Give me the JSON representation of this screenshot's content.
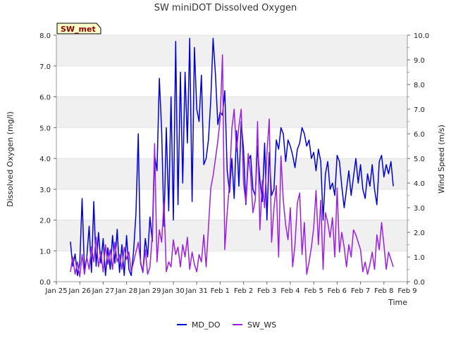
{
  "chart_data": {
    "type": "line",
    "title": "SW miniDOT Dissolved Oxygen",
    "badge": "SW_met",
    "xlabel": "Time",
    "ylabel": "Dissolved Oxygen (mg/l)",
    "y2label": "Wind Speed (m/s)",
    "x_ticks": [
      "Jan 25",
      "Jan 26",
      "Jan 27",
      "Jan 28",
      "Jan 29",
      "Jan 30",
      "Jan 31",
      "Feb 1",
      "Feb 2",
      "Feb 3",
      "Feb 4",
      "Feb 5",
      "Feb 6",
      "Feb 7",
      "Feb 8",
      "Feb 9"
    ],
    "xlim": [
      0,
      15
    ],
    "ylim": [
      0,
      8
    ],
    "y2lim": [
      0,
      10
    ],
    "y_ticks": [
      "0.0",
      "1.0",
      "2.0",
      "3.0",
      "4.0",
      "5.0",
      "6.0",
      "7.0",
      "8.0"
    ],
    "y2_ticks": [
      "0.0",
      "1.0",
      "2.0",
      "3.0",
      "4.0",
      "5.0",
      "6.0",
      "7.0",
      "8.0",
      "9.0",
      "10.0"
    ],
    "grid": "horizontal bands",
    "legend_position": "bottom",
    "series": [
      {
        "name": "MD_DO",
        "axis": "left",
        "color": "#0000dd",
        "x": [
          0.6,
          0.7,
          0.8,
          0.9,
          1.0,
          1.1,
          1.2,
          1.3,
          1.4,
          1.5,
          1.6,
          1.7,
          1.8,
          1.9,
          2.0,
          2.1,
          2.2,
          2.3,
          2.4,
          2.5,
          2.6,
          2.7,
          2.8,
          2.9,
          3.0,
          3.1,
          3.2,
          3.3,
          3.4,
          3.5,
          3.6,
          3.7,
          3.8,
          3.9,
          4.0,
          4.1,
          4.2,
          4.3,
          4.4,
          4.5,
          4.6,
          4.7,
          4.8,
          4.9,
          5.0,
          5.1,
          5.2,
          5.3,
          5.4,
          5.5,
          5.6,
          5.7,
          5.8,
          5.9,
          6.0,
          6.1,
          6.2,
          6.3,
          6.4,
          6.5,
          6.6,
          6.7,
          6.8,
          6.9,
          7.0,
          7.1,
          7.2,
          7.3,
          7.4,
          7.5,
          7.6,
          7.7,
          7.8,
          7.9,
          8.0,
          8.1,
          8.2,
          8.3,
          8.4,
          8.5,
          8.6,
          8.7,
          8.8,
          8.9,
          9.0,
          9.1,
          9.2,
          9.3,
          9.4,
          9.5,
          9.6,
          9.7,
          9.8,
          9.9,
          10.0,
          10.1,
          10.2,
          10.3,
          10.4,
          10.5,
          10.6,
          10.7,
          10.8,
          10.9,
          11.0,
          11.1,
          11.2,
          11.3,
          11.4,
          11.5,
          11.6,
          11.7,
          11.8,
          11.9,
          12.0,
          12.1,
          12.2,
          12.3,
          12.4,
          12.5,
          12.6,
          12.7,
          12.8,
          12.9,
          13.0,
          13.1,
          13.2,
          13.3,
          13.4,
          13.5,
          13.6,
          13.7,
          13.8,
          13.9,
          14.0,
          14.1,
          14.2,
          14.3,
          14.4
        ],
        "values": [
          1.3,
          0.5,
          0.9,
          0.2,
          0.6,
          2.7,
          0.4,
          0.8,
          1.8,
          0.3,
          2.6,
          0.5,
          1.6,
          0.6,
          1.4,
          0.2,
          1.1,
          0.4,
          1.5,
          0.6,
          1.7,
          0.3,
          1.2,
          0.2,
          1.5,
          0.4,
          0.2,
          1.0,
          2.2,
          4.8,
          0.6,
          0.3,
          1.4,
          0.8,
          2.1,
          1.3,
          4.1,
          3.6,
          6.6,
          4.9,
          1.8,
          5.0,
          2.3,
          6.0,
          2.0,
          7.8,
          2.5,
          6.8,
          3.2,
          6.8,
          4.5,
          7.9,
          2.6,
          7.6,
          5.6,
          5.2,
          6.7,
          3.8,
          4.0,
          4.6,
          5.9,
          7.9,
          6.7,
          5.1,
          5.5,
          5.4,
          6.2,
          3.6,
          2.9,
          4.0,
          2.7,
          4.9,
          3.1,
          5.2,
          4.3,
          2.5,
          3.9,
          4.1,
          3.0,
          2.8,
          4.4,
          3.3,
          2.6,
          4.5,
          2.0,
          4.2,
          2.8,
          3.0,
          4.6,
          4.3,
          5.0,
          4.8,
          3.9,
          4.6,
          4.4,
          4.1,
          3.7,
          4.3,
          4.5,
          5.0,
          4.8,
          4.4,
          4.6,
          4.0,
          4.2,
          3.6,
          4.3,
          3.9,
          2.0,
          3.5,
          3.9,
          3.0,
          3.2,
          2.8,
          4.1,
          3.9,
          3.1,
          2.4,
          3.0,
          3.6,
          2.8,
          3.4,
          4.0,
          3.2,
          3.8,
          3.0,
          2.7,
          3.5,
          3.1,
          3.8,
          3.0,
          2.5,
          3.9,
          4.1,
          3.4,
          3.8,
          3.5,
          3.9,
          3.1
        ],
        "overshoot_note_excluded": true
      },
      {
        "name": "SW_WS",
        "axis": "right",
        "color": "#9b1fe0",
        "x": [
          0.6,
          0.7,
          0.8,
          0.9,
          1.0,
          1.1,
          1.2,
          1.3,
          1.4,
          1.5,
          1.6,
          1.7,
          1.8,
          1.9,
          2.0,
          2.1,
          2.2,
          2.3,
          2.4,
          2.5,
          2.6,
          2.7,
          2.8,
          2.9,
          3.0,
          3.1,
          3.2,
          3.3,
          3.4,
          3.5,
          3.6,
          3.7,
          3.8,
          3.9,
          4.0,
          4.1,
          4.2,
          4.3,
          4.4,
          4.5,
          4.6,
          4.7,
          4.8,
          4.9,
          5.0,
          5.1,
          5.2,
          5.3,
          5.4,
          5.5,
          5.6,
          5.7,
          5.8,
          5.9,
          6.0,
          6.1,
          6.2,
          6.3,
          6.4,
          6.5,
          6.6,
          6.7,
          6.8,
          6.9,
          7.0,
          7.1,
          7.2,
          7.3,
          7.4,
          7.5,
          7.6,
          7.7,
          7.8,
          7.9,
          8.0,
          8.1,
          8.2,
          8.3,
          8.4,
          8.5,
          8.6,
          8.7,
          8.8,
          8.9,
          9.0,
          9.1,
          9.2,
          9.3,
          9.4,
          9.5,
          9.6,
          9.7,
          9.8,
          9.9,
          10.0,
          10.1,
          10.2,
          10.3,
          10.4,
          10.5,
          10.6,
          10.7,
          10.8,
          10.9,
          11.0,
          11.1,
          11.2,
          11.3,
          11.4,
          11.5,
          11.6,
          11.7,
          11.8,
          11.9,
          12.0,
          12.1,
          12.2,
          12.3,
          12.4,
          12.5,
          12.6,
          12.7,
          12.8,
          12.9,
          13.0,
          13.1,
          13.2,
          13.3,
          13.4,
          13.5,
          13.6,
          13.7,
          13.8,
          13.9,
          14.0,
          14.1,
          14.2,
          14.3,
          14.4
        ],
        "values": [
          0.4,
          1.0,
          0.3,
          0.8,
          0.2,
          1.1,
          0.3,
          1.0,
          0.5,
          1.4,
          0.8,
          1.8,
          0.6,
          1.2,
          0.4,
          1.5,
          0.7,
          1.3,
          0.5,
          1.6,
          0.8,
          1.1,
          0.5,
          1.4,
          0.9,
          1.2,
          0.4,
          0.8,
          1.2,
          1.6,
          0.8,
          0.4,
          1.3,
          0.3,
          0.6,
          1.9,
          5.6,
          0.8,
          2.1,
          1.6,
          3.3,
          0.4,
          0.8,
          0.6,
          1.7,
          1.1,
          1.4,
          0.6,
          1.5,
          1.0,
          1.8,
          0.5,
          1.2,
          0.7,
          0.4,
          1.1,
          0.8,
          1.9,
          0.6,
          2.2,
          3.8,
          4.3,
          5.0,
          5.7,
          6.6,
          9.2,
          1.3,
          2.8,
          4.0,
          6.2,
          7.0,
          5.3,
          6.3,
          7.0,
          4.0,
          3.2,
          5.2,
          4.4,
          2.8,
          3.3,
          6.5,
          2.1,
          4.1,
          3.0,
          5.2,
          6.6,
          1.6,
          3.0,
          3.9,
          1.0,
          5.1,
          3.3,
          2.3,
          1.7,
          3.0,
          0.6,
          1.5,
          3.2,
          3.6,
          1.1,
          2.4,
          0.3,
          0.8,
          1.4,
          2.2,
          3.7,
          1.5,
          3.3,
          0.5,
          2.8,
          2.4,
          1.8,
          2.6,
          1.0,
          3.8,
          1.2,
          2.0,
          1.4,
          0.6,
          1.5,
          1.0,
          2.1,
          1.9,
          1.6,
          1.3,
          0.4,
          0.8,
          0.3,
          0.7,
          1.2,
          0.5,
          1.9,
          1.3,
          2.4,
          1.5,
          0.5,
          1.2,
          0.9,
          0.6
        ]
      }
    ]
  }
}
